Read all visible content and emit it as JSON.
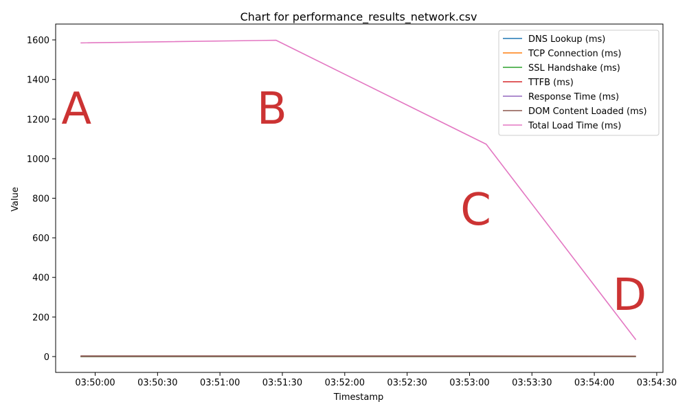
{
  "chart_data": {
    "type": "line",
    "title": "Chart for performance_results_network.csv",
    "xlabel": "Timestamp",
    "ylabel": "Value",
    "x": [
      "03:49:53",
      "03:51:27",
      "03:53:08",
      "03:54:20"
    ],
    "xlim": [
      "03:49:41",
      "03:54:33"
    ],
    "ylim": [
      -80,
      1680
    ],
    "x_ticks": [
      "03:50:00",
      "03:50:30",
      "03:51:00",
      "03:51:30",
      "03:52:00",
      "03:52:30",
      "03:53:00",
      "03:53:30",
      "03:54:00",
      "03:54:30"
    ],
    "y_ticks": [
      0,
      200,
      400,
      600,
      800,
      1000,
      1200,
      1400,
      1600
    ],
    "grid": false,
    "legend_position": "top-right",
    "series": [
      {
        "name": "DNS Lookup (ms)",
        "color": "#1f77b4",
        "values": [
          0.3,
          0.2,
          0.2,
          0.2
        ]
      },
      {
        "name": "TCP Connection (ms)",
        "color": "#ff7f0e",
        "values": [
          0,
          0,
          0,
          0
        ]
      },
      {
        "name": "SSL Handshake (ms)",
        "color": "#2ca02c",
        "values": [
          0,
          0,
          0,
          0
        ]
      },
      {
        "name": "TTFB (ms)",
        "color": "#d62728",
        "values": [
          2,
          2,
          2,
          1
        ]
      },
      {
        "name": "Response Time (ms)",
        "color": "#9467bd",
        "values": [
          2,
          2,
          2,
          1
        ]
      },
      {
        "name": "DOM Content Loaded (ms)",
        "color": "#8c564b",
        "values": [
          3,
          3,
          3,
          2
        ]
      },
      {
        "name": "Total Load Time (ms)",
        "color": "#e377c2",
        "values": [
          1585,
          1598,
          1073,
          85
        ]
      }
    ],
    "annotations": [
      {
        "label": "A",
        "x": "03:49:51",
        "y": 1260,
        "color": "#cc3333"
      },
      {
        "label": "B",
        "x": "03:51:25",
        "y": 1260,
        "color": "#cc3333"
      },
      {
        "label": "C",
        "x": "03:53:03",
        "y": 750,
        "color": "#cc3333"
      },
      {
        "label": "D",
        "x": "03:54:17",
        "y": 320,
        "color": "#cc3333"
      }
    ]
  }
}
